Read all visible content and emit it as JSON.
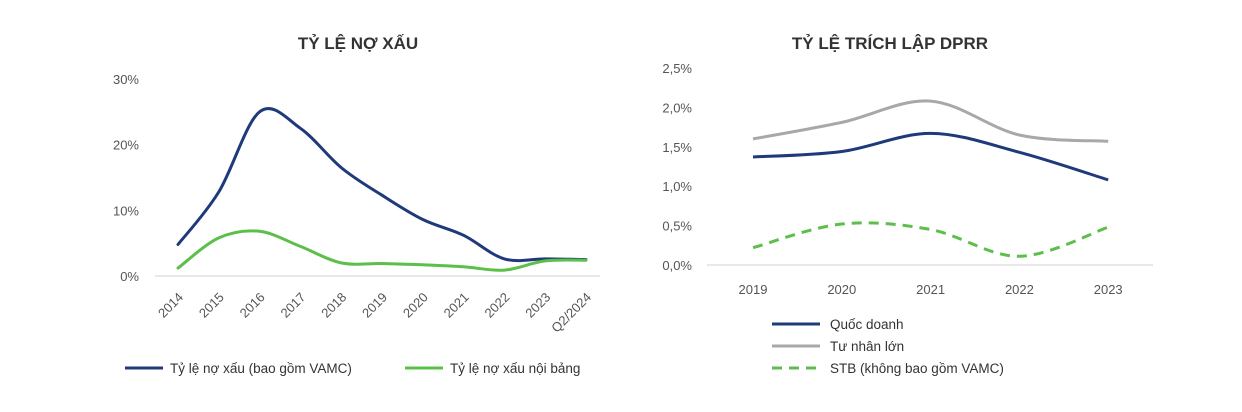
{
  "chart_data": [
    {
      "type": "line",
      "title": "TỶ LỆ NỢ XẤU",
      "categories": [
        "2014",
        "2015",
        "2016",
        "2017",
        "2018",
        "2019",
        "2020",
        "2021",
        "2022",
        "2023",
        "Q2/2024"
      ],
      "y_ticks": [
        "0%",
        "10%",
        "20%",
        "30%"
      ],
      "ylim": [
        0,
        30
      ],
      "grid": false,
      "legend_position": "bottom",
      "series": [
        {
          "name": "Tỷ lệ nợ xấu (bao gồm VAMC)",
          "color": "#1f3a7a",
          "dash": "solid",
          "values": [
            4.8,
            12.8,
            25.0,
            22.5,
            16.5,
            12.3,
            8.6,
            6.2,
            2.6,
            2.6,
            2.5
          ]
        },
        {
          "name": "Tỷ lệ nợ xấu nội bảng",
          "color": "#5cbf4a",
          "dash": "solid",
          "values": [
            1.2,
            5.8,
            6.8,
            4.5,
            2.0,
            1.9,
            1.7,
            1.4,
            0.9,
            2.3,
            2.4
          ]
        }
      ]
    },
    {
      "type": "line",
      "title": "TỶ LỆ TRÍCH LẬP DPRR",
      "categories": [
        "2019",
        "2020",
        "2021",
        "2022",
        "2023"
      ],
      "y_ticks": [
        "0,0%",
        "0,5%",
        "1,0%",
        "1,5%",
        "2,0%",
        "2,5%"
      ],
      "ylim": [
        0,
        2.5
      ],
      "grid": false,
      "legend_position": "bottom",
      "series": [
        {
          "name": "Quốc doanh",
          "color": "#1f3a7a",
          "dash": "solid",
          "values": [
            1.37,
            1.44,
            1.67,
            1.43,
            1.08
          ]
        },
        {
          "name": "Tư nhân lớn",
          "color": "#a8a8a8",
          "dash": "solid",
          "values": [
            1.6,
            1.81,
            2.08,
            1.65,
            1.57
          ]
        },
        {
          "name": "STB (không bao gồm VAMC)",
          "color": "#5cbf4a",
          "dash": "dashed",
          "values": [
            0.22,
            0.52,
            0.45,
            0.11,
            0.48
          ]
        }
      ]
    }
  ]
}
